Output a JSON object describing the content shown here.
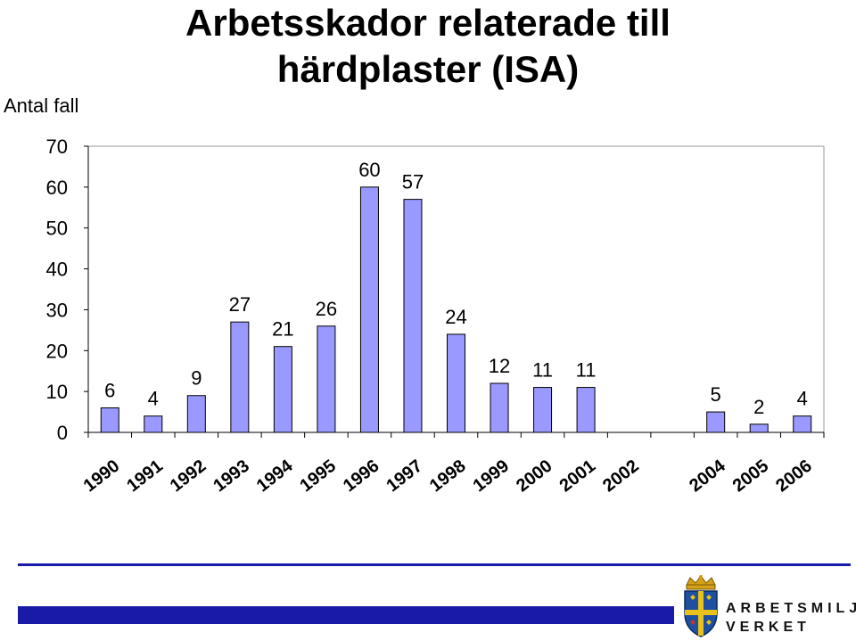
{
  "chart_data": {
    "type": "bar",
    "title": "Arbetsskador relaterade till härdplaster (ISA)",
    "title_lines": [
      "Arbetsskador relaterade till",
      "härdplaster (ISA)"
    ],
    "ylabel": "Antal fall",
    "xlabel": "",
    "ylim": [
      0,
      70
    ],
    "yticks": [
      0,
      10,
      20,
      30,
      40,
      50,
      60,
      70
    ],
    "grid": false,
    "bar_color": "#9999ff",
    "categories": [
      "1990",
      "1991",
      "1992",
      "1993",
      "1994",
      "1995",
      "1996",
      "1997",
      "1998",
      "1999",
      "2000",
      "2001",
      "2002",
      "",
      "2004",
      "2005",
      "2006"
    ],
    "values": [
      6,
      4,
      9,
      27,
      21,
      26,
      60,
      57,
      24,
      12,
      11,
      11,
      null,
      null,
      5,
      2,
      4
    ],
    "data_labels": [
      "6",
      "4",
      "9",
      "27",
      "21",
      "26",
      "60",
      "57",
      "24",
      "12",
      "11",
      "11",
      "",
      "",
      "5",
      "2",
      "4"
    ]
  },
  "branding": {
    "line1": "ARBETSMILJÖ",
    "line2": "VERKET",
    "color": "#1a1aa8"
  }
}
